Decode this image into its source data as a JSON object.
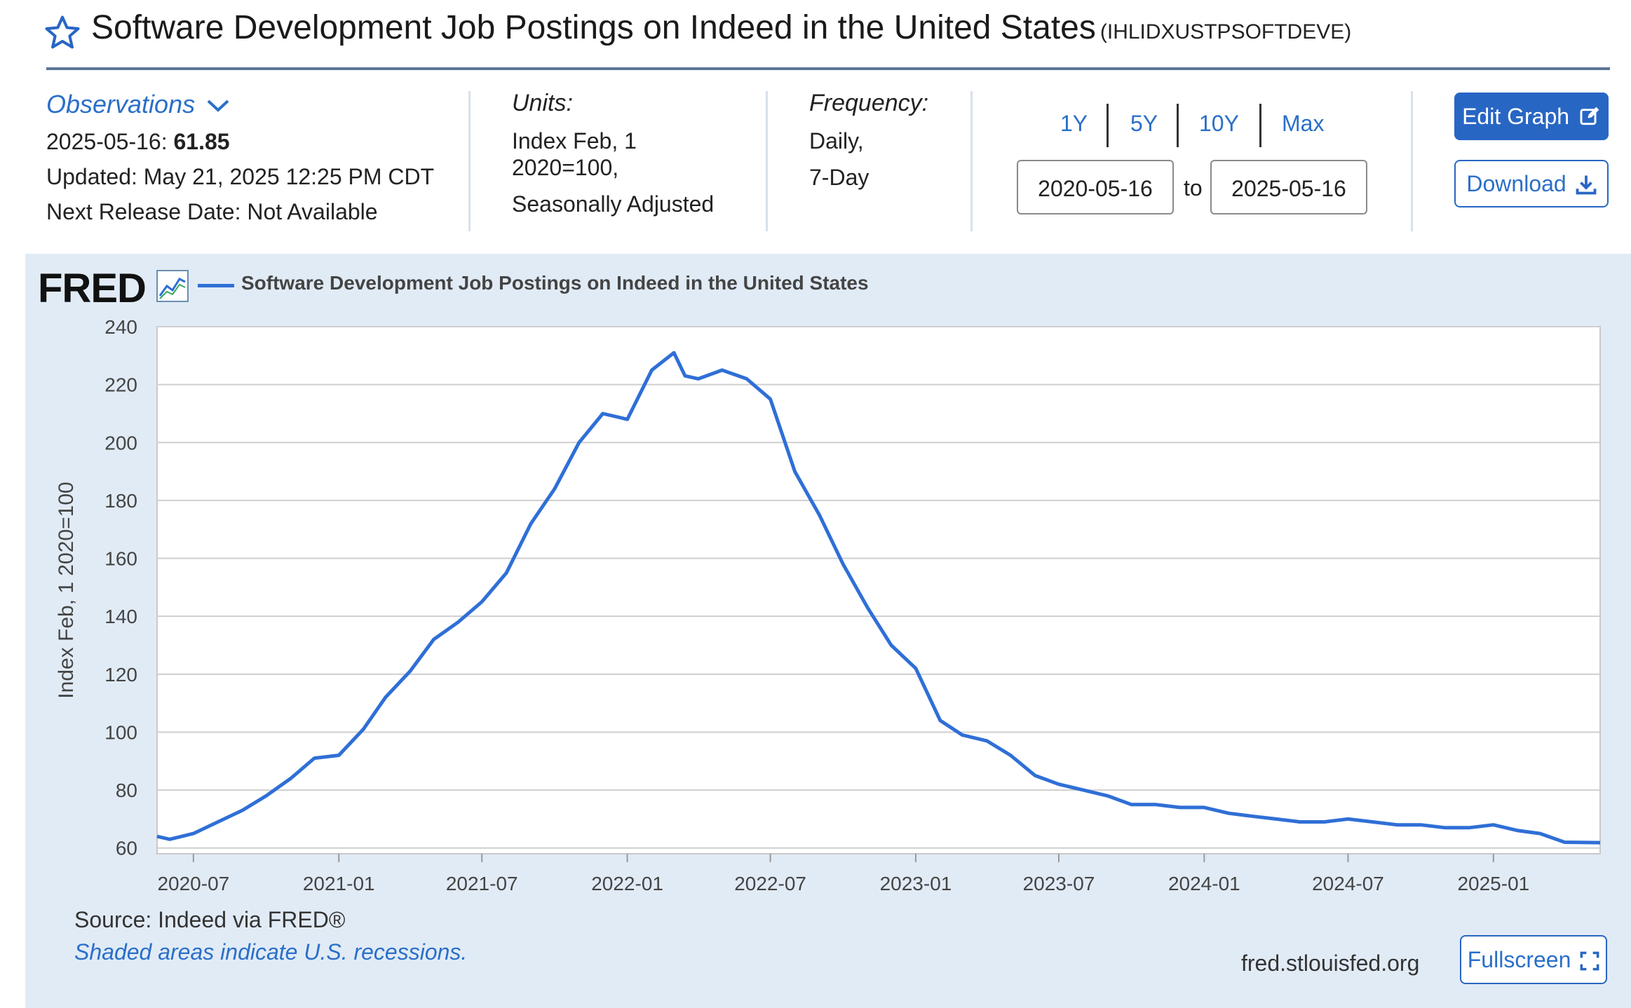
{
  "header": {
    "title": "Software Development Job Postings on Indeed in the United States",
    "series_id": "(IHLIDXUSTPSOFTDEVE)"
  },
  "observations": {
    "label": "Observations",
    "latest_date": "2025-05-16:",
    "latest_value": "61.85",
    "updated": "Updated: May 21, 2025 12:25 PM CDT",
    "next_release": "Next Release Date: Not Available"
  },
  "units": {
    "label": "Units:",
    "line1": "Index Feb, 1",
    "line2": "2020=100,",
    "line3": "Seasonally Adjusted"
  },
  "frequency": {
    "label": "Frequency:",
    "line1": "Daily,",
    "line2": "7-Day"
  },
  "range_buttons": [
    "1Y",
    "5Y",
    "10Y",
    "Max"
  ],
  "date_range": {
    "start": "2020-05-16",
    "to_label": "to",
    "end": "2025-05-16"
  },
  "actions": {
    "edit_graph": "Edit Graph",
    "download": "Download",
    "fullscreen": "Fullscreen"
  },
  "graph": {
    "logo": "FRED",
    "legend_label": "Software Development Job Postings on Indeed in the United States",
    "source": "Source: Indeed via FRED®",
    "recession_note": "Shaded areas indicate U.S. recessions.",
    "site": "fred.stlouisfed.org"
  },
  "colors": {
    "series": "#2f6fd6",
    "accent": "#2866c4",
    "panel": "#e1ebf6"
  },
  "chart_data": {
    "type": "line",
    "title": "",
    "ylabel": "Index Feb, 1 2020=100",
    "ylim": [
      58,
      240
    ],
    "yticks": [
      60,
      80,
      100,
      120,
      140,
      160,
      180,
      200,
      220,
      240
    ],
    "xticks": [
      "2020-07",
      "2021-01",
      "2021-07",
      "2022-01",
      "2022-07",
      "2023-01",
      "2023-07",
      "2024-01",
      "2024-07",
      "2025-01"
    ],
    "xlim": [
      "2020-05-16",
      "2025-05-16"
    ],
    "grid": true,
    "series": [
      {
        "name": "Software Development Job Postings on Indeed in the United States",
        "x": [
          "2020-05-16",
          "2020-06-01",
          "2020-07-01",
          "2020-08-01",
          "2020-09-01",
          "2020-10-01",
          "2020-11-01",
          "2020-12-01",
          "2021-01-01",
          "2021-02-01",
          "2021-03-01",
          "2021-04-01",
          "2021-05-01",
          "2021-06-01",
          "2021-07-01",
          "2021-08-01",
          "2021-09-01",
          "2021-10-01",
          "2021-11-01",
          "2021-12-01",
          "2022-01-01",
          "2022-02-01",
          "2022-03-01",
          "2022-03-15",
          "2022-04-01",
          "2022-05-01",
          "2022-06-01",
          "2022-07-01",
          "2022-08-01",
          "2022-09-01",
          "2022-10-01",
          "2022-11-01",
          "2022-12-01",
          "2023-01-01",
          "2023-02-01",
          "2023-03-01",
          "2023-04-01",
          "2023-05-01",
          "2023-06-01",
          "2023-07-01",
          "2023-08-01",
          "2023-09-01",
          "2023-10-01",
          "2023-11-01",
          "2023-12-01",
          "2024-01-01",
          "2024-02-01",
          "2024-03-01",
          "2024-04-01",
          "2024-05-01",
          "2024-06-01",
          "2024-07-01",
          "2024-08-01",
          "2024-09-01",
          "2024-10-01",
          "2024-11-01",
          "2024-12-01",
          "2025-01-01",
          "2025-02-01",
          "2025-03-01",
          "2025-04-01",
          "2025-05-16"
        ],
        "values": [
          64,
          63,
          65,
          69,
          73,
          78,
          84,
          91,
          92,
          101,
          112,
          121,
          132,
          138,
          145,
          155,
          172,
          184,
          200,
          210,
          208,
          225,
          231,
          223,
          222,
          225,
          222,
          215,
          190,
          175,
          158,
          143,
          130,
          122,
          104,
          99,
          97,
          92,
          85,
          82,
          80,
          78,
          75,
          75,
          74,
          74,
          72,
          71,
          70,
          69,
          69,
          70,
          69,
          68,
          68,
          67,
          67,
          68,
          66,
          65,
          62,
          61.85
        ]
      }
    ]
  }
}
